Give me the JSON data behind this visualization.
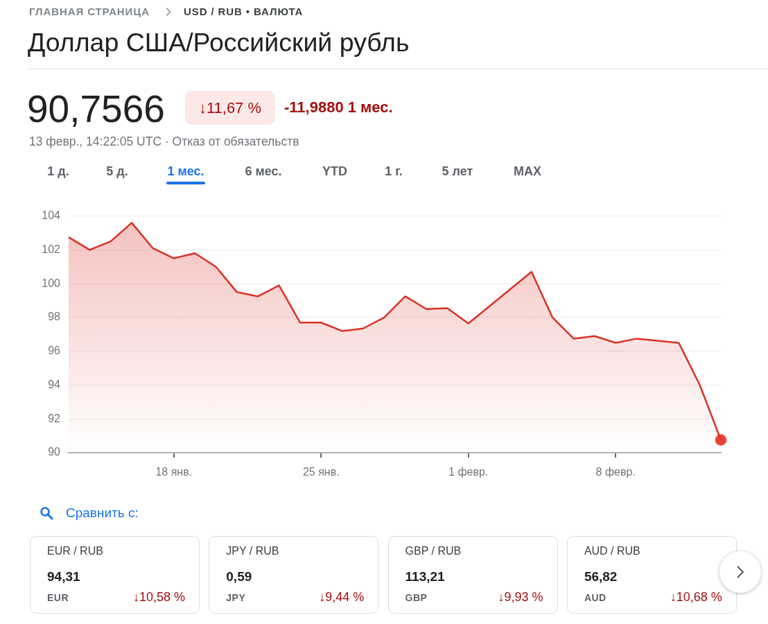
{
  "chart_data": [
    {
      "type": "area",
      "title": "Доллар США/Российский рубль",
      "annotations": [
        "ГЛАВНАЯ СТРАНИЦА",
        "USD / RUB • ВАЛЮТА",
        "90,7566",
        "↓11,67 %",
        "-11,9880 1 мес.",
        "13 февр., 14:22:05 UTC · Отказ от обязательств",
        "1 д.",
        "5 д.",
        "1 мес.",
        "6 мес.",
        "YTD",
        "1 г.",
        "5 лет",
        "MAX",
        "Сравнить с:"
      ],
      "x": [
        "--01-13",
        "--01-14",
        "--01-15",
        "--01-16",
        "--01-17",
        "--01-18",
        "--01-19",
        "--01-20",
        "--01-21",
        "--01-22",
        "--01-23",
        "--01-24",
        "--01-25",
        "--01-26",
        "--01-27",
        "--01-28",
        "--01-29",
        "--01-30",
        "--01-31",
        "--02-01",
        "--02-04",
        "--02-05",
        "--02-06",
        "--02-07",
        "--02-08",
        "--02-09",
        "--02-11",
        "--02-12",
        "--02-13"
      ],
      "series": [
        {
          "color": "#d93025",
          "values": [
            102.75,
            102.0,
            102.5,
            103.6,
            102.1,
            101.5,
            101.8,
            101.0,
            99.5,
            99.25,
            99.9,
            97.7,
            97.7,
            97.2,
            97.35,
            98.0,
            99.25,
            98.5,
            98.55,
            97.65,
            100.7,
            98.0,
            96.75,
            96.9,
            96.5,
            96.75,
            96.5,
            94.0,
            90.76
          ]
        },
        {
          "type": "scatter",
          "marker": "circle",
          "color": "#ea4335",
          "x": [
            "--02-13"
          ],
          "values": [
            90.76
          ]
        }
      ],
      "xlim": [
        "--01-13",
        "--02-13"
      ],
      "xticks": [
        {
          "value": "--01-18",
          "label": "18 янв."
        },
        {
          "value": "--01-25",
          "label": "25 янв."
        },
        {
          "value": "--02-01",
          "label": "1 февр."
        },
        {
          "value": "--02-08",
          "label": "8 февр."
        }
      ],
      "ylim": [
        90,
        104
      ],
      "yticks": [
        90,
        92,
        94,
        96,
        98,
        100,
        102,
        104
      ],
      "grid": "y"
    },
    {
      "type": "other",
      "title": "EUR / RUB",
      "annotations": [
        "94,31",
        "EUR",
        "↓10,58 %"
      ]
    },
    {
      "type": "other",
      "title": "JPY / RUB",
      "annotations": [
        "0,59",
        "JPY",
        "↓9,44 %"
      ]
    },
    {
      "type": "other",
      "title": "GBP / RUB",
      "annotations": [
        "113,21",
        "GBP",
        "↓9,93 %"
      ]
    },
    {
      "type": "other",
      "title": "AUD / RUB",
      "annotations": [
        "56,82",
        "AUD",
        "↓10,68 %"
      ]
    }
  ]
}
